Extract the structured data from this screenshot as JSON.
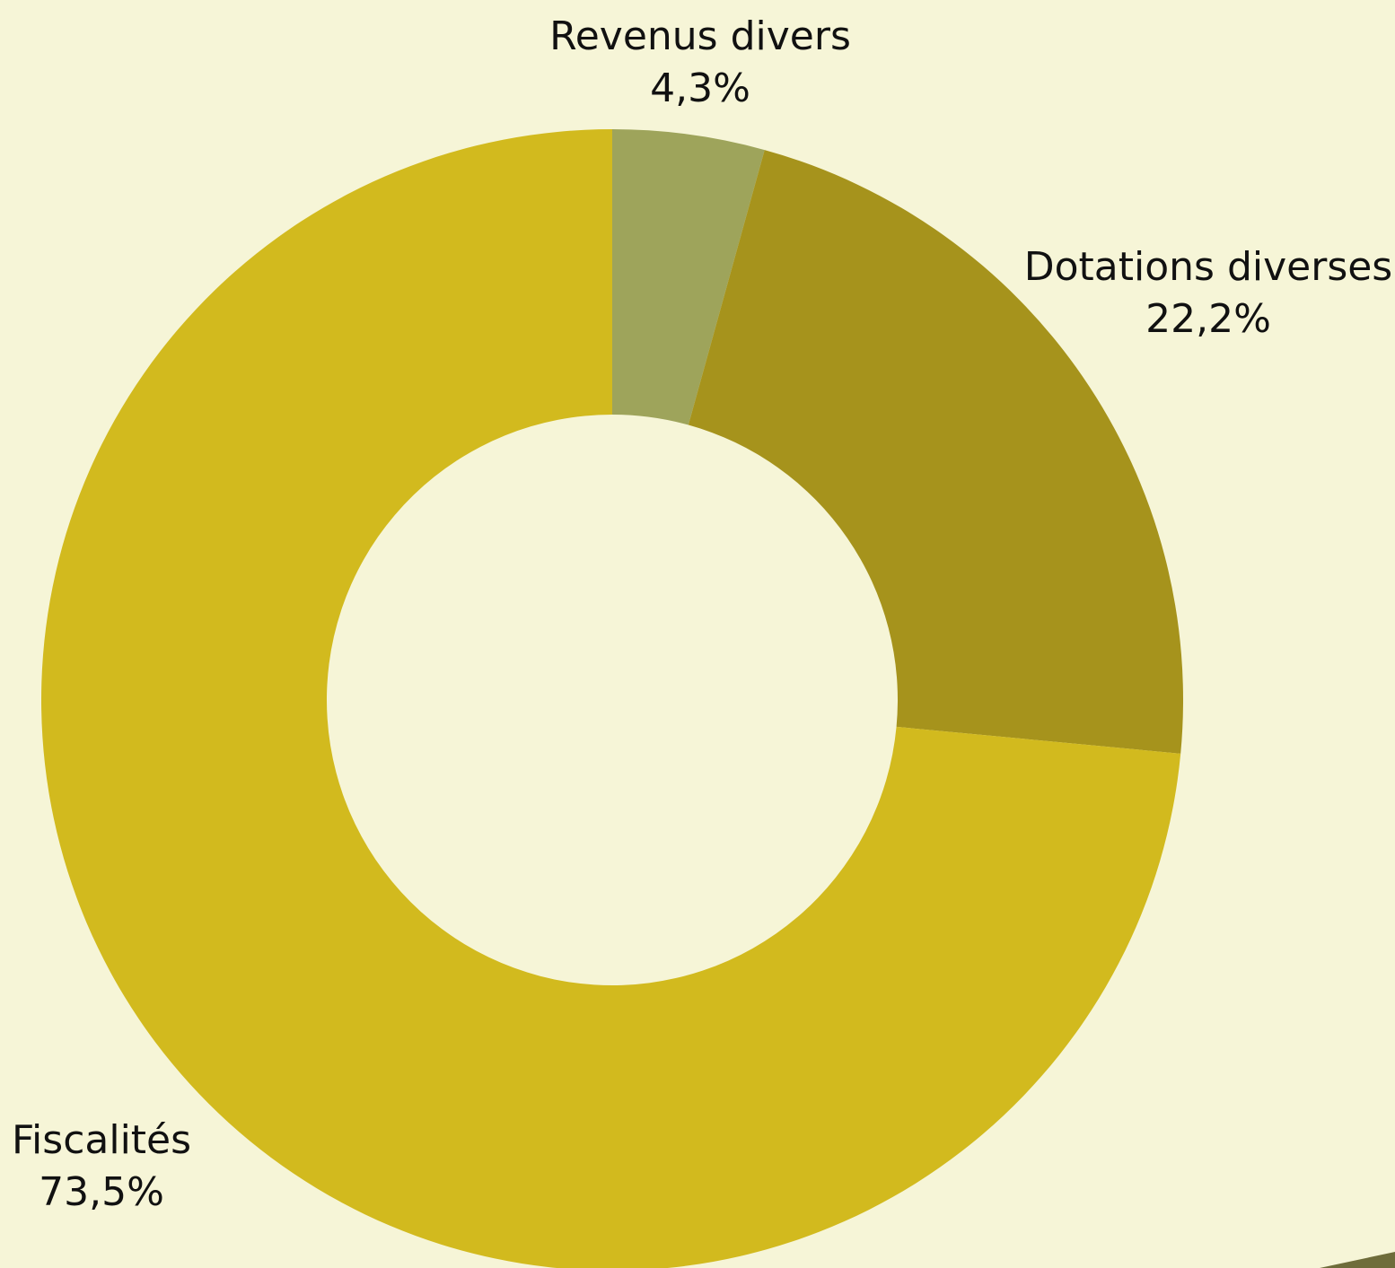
{
  "chart_data": {
    "type": "pie",
    "donut": true,
    "slices": [
      {
        "label": "Revenus divers",
        "value": 4.3,
        "value_label": "4,3%",
        "color": "#9EA45B"
      },
      {
        "label": "Dotations diverses",
        "value": 22.2,
        "value_label": "22,2%",
        "color": "#A6931C"
      },
      {
        "label": "Fiscalités",
        "value": 73.5,
        "value_label": "73,5%",
        "color": "#D2BA1E"
      }
    ],
    "start": "top",
    "direction": "clockwise"
  },
  "colors": {
    "background": "#F6F5D7",
    "text": "#111111",
    "corner_accent": "#6E6C3A"
  }
}
